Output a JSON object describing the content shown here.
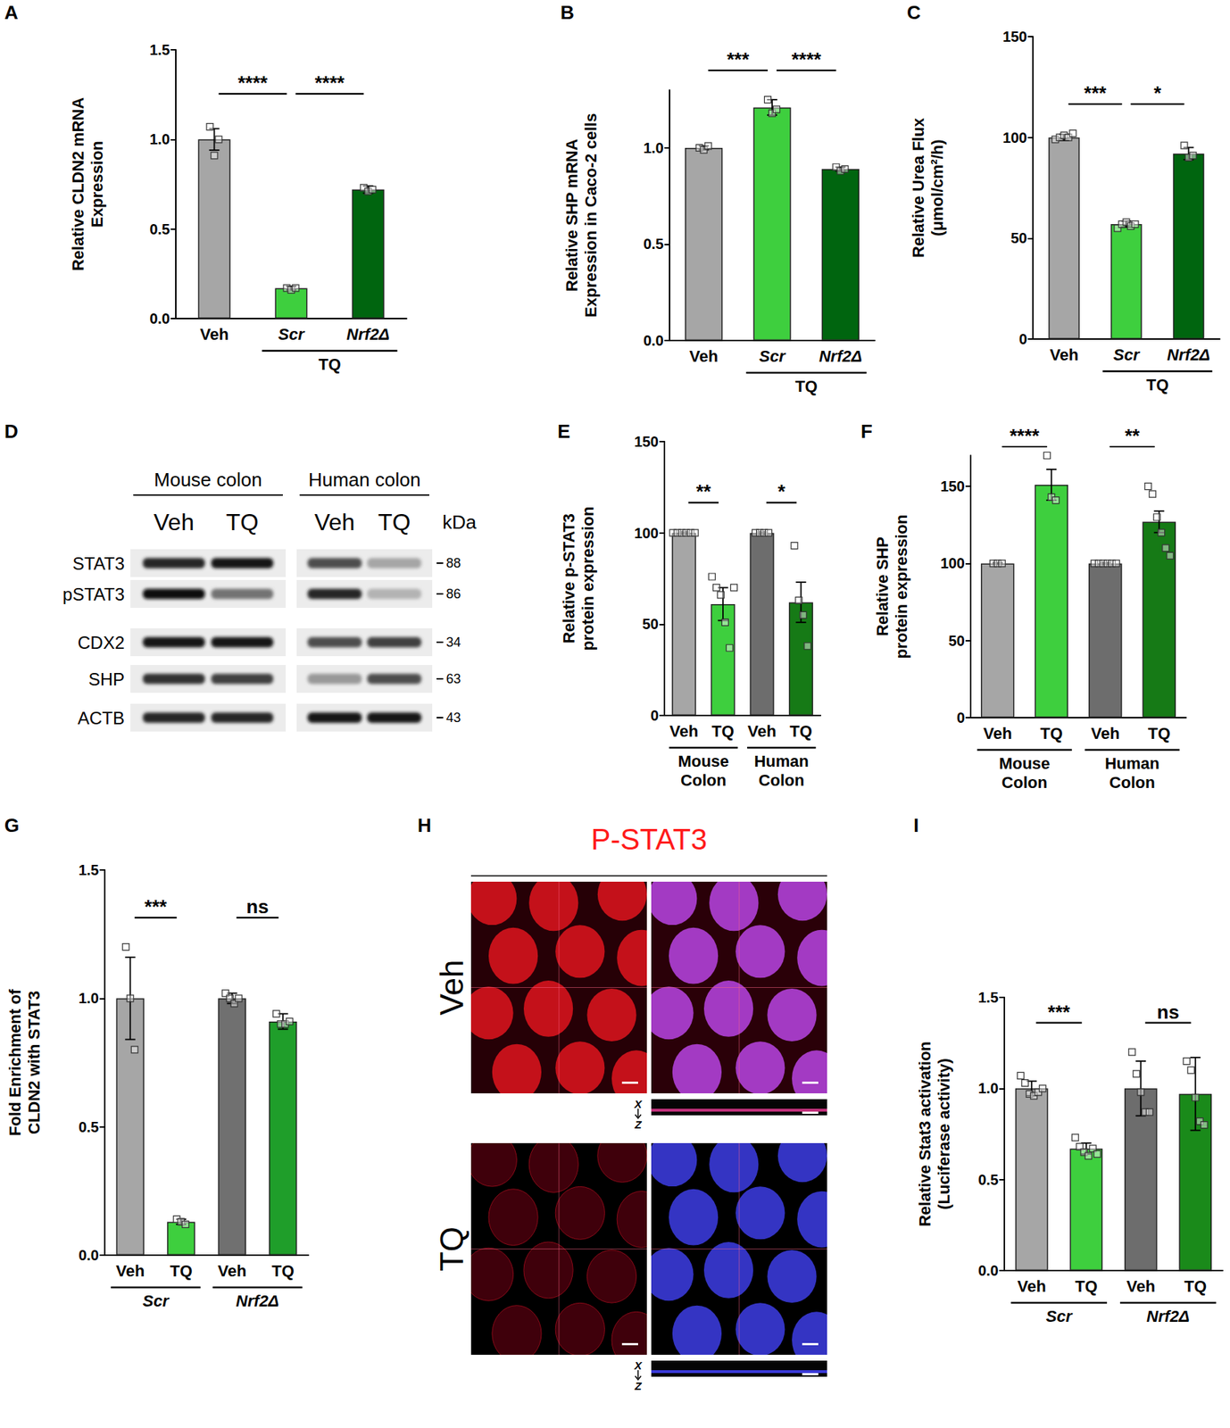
{
  "chart_data": [
    {
      "panel": "A",
      "type": "bar",
      "ylabel": "Relative CLDN2 mRNA\nExpression",
      "categories": [
        "Veh",
        "Scr",
        "Nrf2Δ"
      ],
      "values": [
        1.0,
        0.17,
        0.72
      ],
      "errors": [
        0.06,
        0.01,
        0.02
      ],
      "points": [
        [
          1.07,
          0.91,
          1.0
        ],
        [
          0.17,
          0.16,
          0.17
        ],
        [
          0.73,
          0.71,
          0.72
        ]
      ],
      "colors": [
        "#a6a6a6",
        "#3ecf3e",
        "#00650f"
      ],
      "groups": [
        {
          "label": "TQ",
          "from": 1,
          "to": 2
        }
      ],
      "annotations": [
        {
          "from": 0,
          "to": 1,
          "text": "****"
        },
        {
          "from": 1,
          "to": 2,
          "text": "****"
        }
      ],
      "ylim": [
        0,
        1.5
      ],
      "yticks": [
        {
          "value": 0,
          "label": "0.0"
        },
        0.5,
        {
          "value": 1,
          "label": "1.0"
        },
        1.5
      ],
      "grid": false
    },
    {
      "panel": "B",
      "type": "bar",
      "ylabel": "Relative SHP mRNA\nExpression in Caco-2 cells",
      "categories": [
        "Veh",
        "Scr",
        "Nrf2Δ"
      ],
      "values": [
        1.0,
        1.21,
        0.89
      ],
      "errors": [
        0.01,
        0.04,
        0.01
      ],
      "points": [
        [
          1.0,
          0.99,
          1.01
        ],
        [
          1.25,
          1.18,
          1.2
        ],
        [
          0.9,
          0.88,
          0.89
        ]
      ],
      "colors": [
        "#a6a6a6",
        "#3ecf3e",
        "#00650f"
      ],
      "groups": [
        {
          "label": "TQ",
          "from": 1,
          "to": 2
        }
      ],
      "annotations": [
        {
          "from": 0,
          "to": 1,
          "text": "***"
        },
        {
          "from": 1,
          "to": 2,
          "text": "****"
        }
      ],
      "ylim": [
        0,
        1.3
      ],
      "yticks": [
        {
          "value": 0,
          "label": "0.0"
        },
        0.5,
        {
          "value": 1,
          "label": "1.0"
        }
      ],
      "grid": false
    },
    {
      "panel": "C",
      "type": "bar",
      "ylabel": "Relative Urea Flux\n(μmol/cm²/h)",
      "categories": [
        "Veh",
        "Scr",
        "Nrf2Δ"
      ],
      "values": [
        100,
        57,
        92
      ],
      "errors": [
        1.5,
        1.5,
        3
      ],
      "points": [
        [
          99,
          100,
          101,
          100,
          102
        ],
        [
          55,
          57,
          58,
          56,
          57
        ],
        [
          96,
          90,
          91
        ]
      ],
      "colors": [
        "#a6a6a6",
        "#3ecf3e",
        "#00650f"
      ],
      "groups": [
        {
          "label": "TQ",
          "from": 1,
          "to": 2
        }
      ],
      "annotations": [
        {
          "from": 0,
          "to": 1,
          "text": "***"
        },
        {
          "from": 1,
          "to": 2,
          "text": "*"
        }
      ],
      "ylim": [
        0,
        150
      ],
      "yticks": [
        0,
        50,
        100,
        150
      ],
      "grid": false
    },
    {
      "panel": "E",
      "type": "bar",
      "ylabel": "Relative p-STAT3\nprotein expression",
      "categories": [
        "Veh",
        "TQ",
        "Veh",
        "TQ"
      ],
      "values": [
        100,
        61,
        100,
        62
      ],
      "errors": [
        0.5,
        9,
        0.5,
        11
      ],
      "points": [
        [
          100,
          100,
          100,
          100,
          100,
          100
        ],
        [
          76,
          70,
          66,
          51,
          37,
          70
        ],
        [
          100,
          100,
          100,
          100
        ],
        [
          93,
          63,
          55,
          38
        ]
      ],
      "colors": [
        "#a6a6a6",
        "#3ecf3e",
        "#6d6d6d",
        "#167a16"
      ],
      "groups": [
        {
          "label": "Mouse\nColon",
          "from": 0,
          "to": 1
        },
        {
          "label": "Human\nColon",
          "from": 2,
          "to": 3
        }
      ],
      "annotations": [
        {
          "from": 0,
          "to": 1,
          "text": "**"
        },
        {
          "from": 2,
          "to": 3,
          "text": "*"
        }
      ],
      "ylim": [
        0,
        150
      ],
      "yticks": [
        0,
        50,
        100,
        150
      ],
      "grid": false
    },
    {
      "panel": "F",
      "type": "bar",
      "ylabel": "Relative SHP\nprotein expression",
      "categories": [
        "Veh",
        "TQ",
        "Veh",
        "TQ"
      ],
      "values": [
        100,
        151,
        100,
        127
      ],
      "errors": [
        0.5,
        10,
        0.5,
        7
      ],
      "points": [
        [
          100,
          100,
          100
        ],
        [
          170,
          143,
          141
        ],
        [
          100,
          100,
          100,
          100,
          100,
          100
        ],
        [
          150,
          145,
          130,
          120,
          110,
          105
        ]
      ],
      "colors": [
        "#a6a6a6",
        "#3ecf3e",
        "#6d6d6d",
        "#167a16"
      ],
      "groups": [
        {
          "label": "Mouse\nColon",
          "from": 0,
          "to": 1
        },
        {
          "label": "Human\nColon",
          "from": 2,
          "to": 3
        }
      ],
      "annotations": [
        {
          "from": 0,
          "to": 1,
          "text": "****"
        },
        {
          "from": 2,
          "to": 3,
          "text": "**"
        }
      ],
      "ylim": [
        0,
        170
      ],
      "yticks": [
        0,
        50,
        100,
        150
      ],
      "grid": false
    },
    {
      "panel": "G",
      "type": "bar",
      "ylabel": "Fold Enrichment of\nCLDN2 with STAT3",
      "categories": [
        "Veh",
        "TQ",
        "Veh",
        "TQ"
      ],
      "values": [
        1.0,
        0.13,
        1.0,
        0.91
      ],
      "errors": [
        0.16,
        0.01,
        0.02,
        0.03
      ],
      "points": [
        [
          1.2,
          1.0,
          0.8
        ],
        [
          0.14,
          0.13,
          0.12
        ],
        [
          1.02,
          1.0,
          0.98,
          1.0
        ],
        [
          0.94,
          0.9,
          0.9,
          0.91
        ]
      ],
      "colors": [
        "#a6a6a6",
        "#3ecf3e",
        "#707070",
        "#1f9e2a"
      ],
      "groups": [
        {
          "label": "Scr",
          "from": 0,
          "to": 1
        },
        {
          "label": "Nrf2Δ",
          "from": 2,
          "to": 3
        }
      ],
      "annotations": [
        {
          "from": 0,
          "to": 1,
          "text": "***"
        },
        {
          "from": 2,
          "to": 3,
          "text": "ns"
        }
      ],
      "ylim": [
        0,
        1.5
      ],
      "yticks": [
        {
          "value": 0,
          "label": "0.0"
        },
        0.5,
        {
          "value": 1,
          "label": "1.0"
        },
        1.5
      ],
      "grid": false
    },
    {
      "panel": "I",
      "type": "bar",
      "ylabel": "Relative Stat3 activation\n(Luciferase activity)",
      "categories": [
        "Veh",
        "TQ",
        "Veh",
        "TQ"
      ],
      "values": [
        1.0,
        0.67,
        1.0,
        0.97
      ],
      "errors": [
        0.04,
        0.03,
        0.15,
        0.2
      ],
      "points": [
        [
          1.07,
          1.03,
          0.97,
          0.96,
          0.98,
          1.0
        ],
        [
          0.73,
          0.68,
          0.65,
          0.63,
          0.67,
          0.64
        ],
        [
          1.2,
          1.08,
          0.98,
          0.87,
          0.87
        ],
        [
          1.15,
          1.1,
          0.95,
          0.82,
          0.8
        ]
      ],
      "colors": [
        "#a6a6a6",
        "#3ecf3e",
        "#6d6d6d",
        "#1a8a1a"
      ],
      "groups": [
        {
          "label": "Scr",
          "from": 0,
          "to": 1
        },
        {
          "label": "Nrf2Δ",
          "from": 2,
          "to": 3
        }
      ],
      "annotations": [
        {
          "from": 0,
          "to": 1,
          "text": "***"
        },
        {
          "from": 2,
          "to": 3,
          "text": "ns"
        }
      ],
      "ylim": [
        0,
        1.5
      ],
      "yticks": [
        {
          "value": 0,
          "label": "0.0"
        },
        0.5,
        {
          "value": 1,
          "label": "1.0"
        },
        1.5
      ],
      "grid": false
    }
  ],
  "blot": {
    "panel": "D",
    "unit": "kDa",
    "groups": [
      {
        "label": "Mouse colon",
        "lanes": [
          "Veh",
          "TQ"
        ]
      },
      {
        "label": "Human colon",
        "lanes": [
          "Veh",
          "TQ"
        ]
      }
    ],
    "bands": [
      {
        "name": "STAT3",
        "kda": 88,
        "intensity": [
          0.85,
          0.9,
          0.7,
          0.35
        ]
      },
      {
        "name": "pSTAT3",
        "kda": 86,
        "intensity": [
          0.95,
          0.55,
          0.85,
          0.3
        ]
      },
      {
        "name": "CDX2",
        "kda": 34,
        "intensity": [
          0.9,
          0.9,
          0.7,
          0.75
        ]
      },
      {
        "name": "SHP",
        "kda": 63,
        "intensity": [
          0.8,
          0.75,
          0.4,
          0.7
        ]
      },
      {
        "name": "ACTB",
        "kda": 43,
        "intensity": [
          0.85,
          0.85,
          0.9,
          0.9
        ]
      }
    ]
  },
  "microscopy": {
    "panel": "H",
    "title": "P-STAT3",
    "rows": [
      "Veh",
      "TQ"
    ],
    "xz_axes": [
      "X",
      "Z"
    ]
  }
}
